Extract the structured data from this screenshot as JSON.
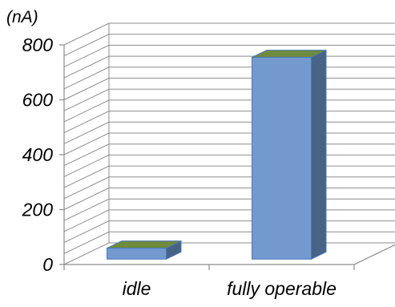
{
  "chart_data": {
    "type": "bar",
    "categories": [
      "idle",
      "fully operable"
    ],
    "values": [
      40,
      735
    ],
    "ylabel": "(nA)",
    "ylim": [
      0,
      800
    ],
    "yticks": [
      0,
      200,
      400,
      600,
      800
    ],
    "ytick_labels": [
      "0",
      "200",
      "400",
      "600",
      "800"
    ],
    "grid": true,
    "projection": "3d",
    "legend": "none"
  },
  "colors": {
    "bar_front": "#7399CF",
    "bar_side": "#476385",
    "bar_top": "#6F8B3E",
    "bar_edge": "#4A78B5",
    "grid": "#8c8c8c"
  }
}
